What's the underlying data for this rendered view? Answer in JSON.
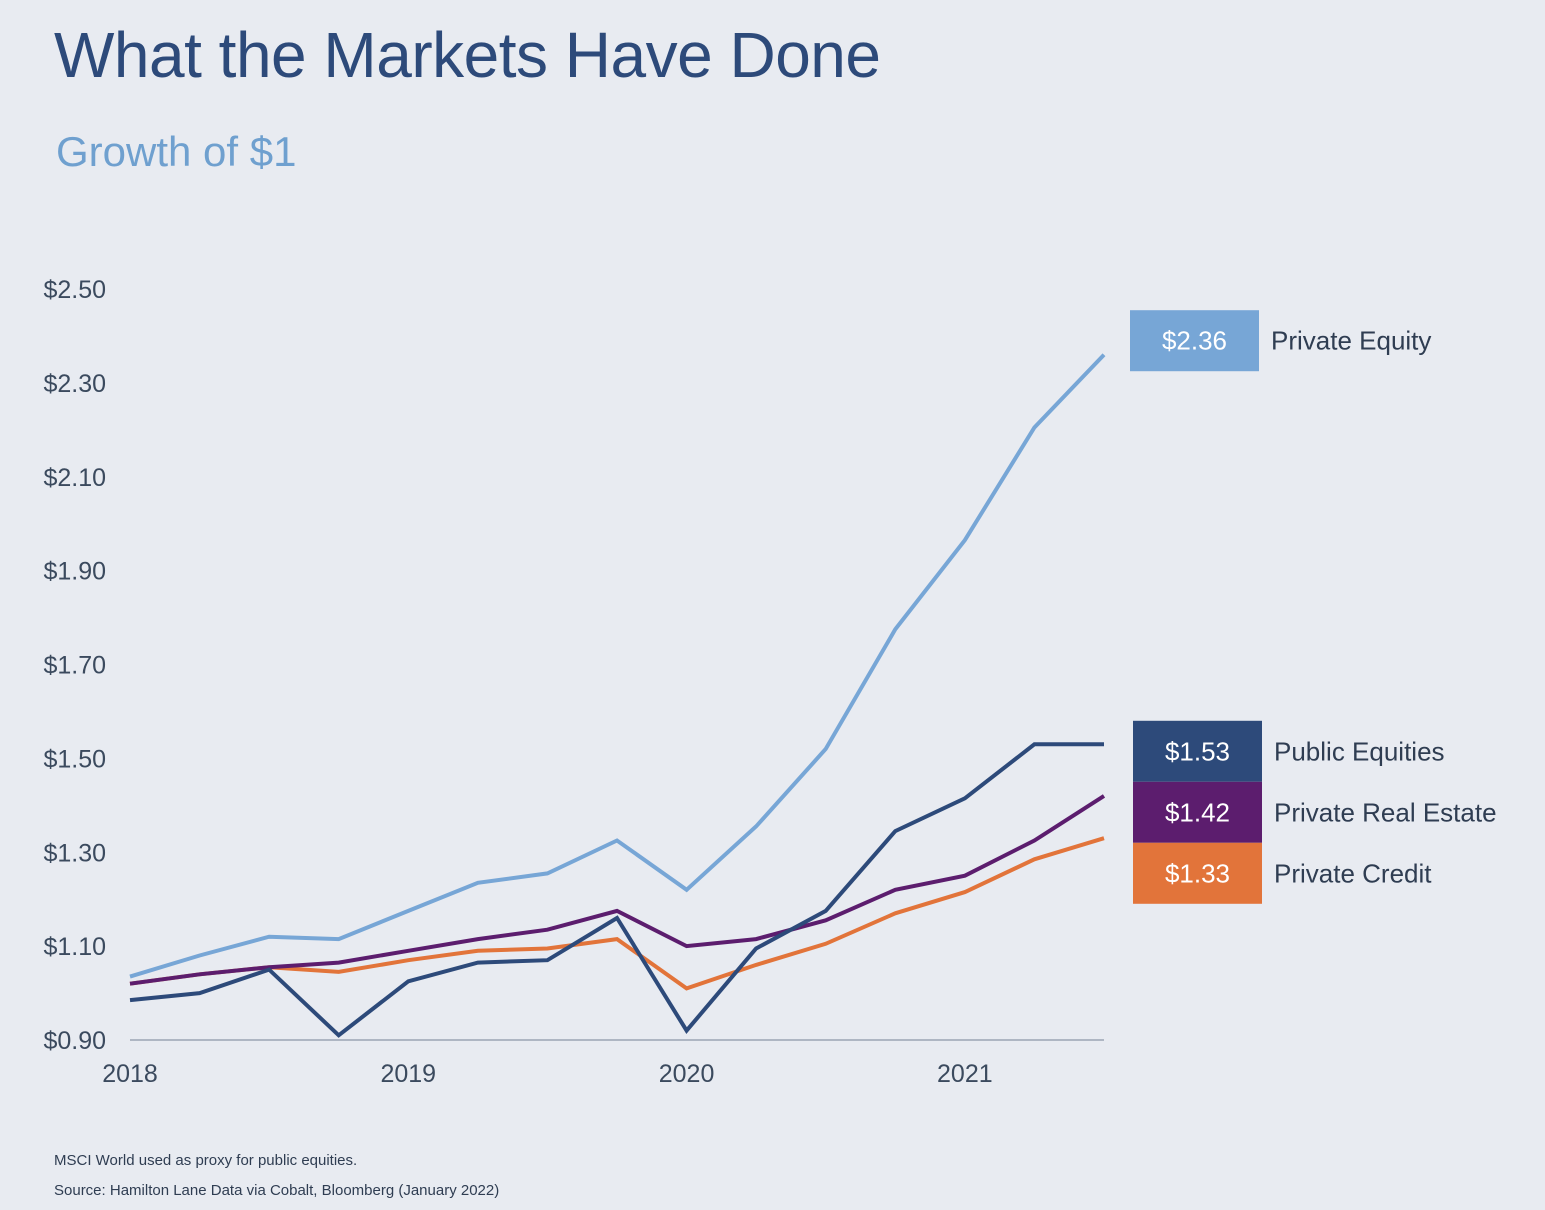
{
  "chart_data": {
    "type": "line",
    "title": "What the Markets Have Done",
    "subtitle": "Growth of $1",
    "x": [
      2018.0,
      2018.25,
      2018.5,
      2018.75,
      2019.0,
      2019.25,
      2019.5,
      2019.75,
      2020.0,
      2020.25,
      2020.5,
      2020.75,
      2021.0,
      2021.25,
      2021.5
    ],
    "x_ticks": [
      2018,
      2019,
      2020,
      2021
    ],
    "x_tick_labels": [
      "2018",
      "2019",
      "2020",
      "2021"
    ],
    "xlim": [
      2018.0,
      2021.5
    ],
    "y_ticks": [
      0.9,
      1.1,
      1.3,
      1.5,
      1.7,
      1.9,
      2.1,
      2.3,
      2.5
    ],
    "y_tick_labels": [
      "$0.90",
      "$1.10",
      "$1.30",
      "$1.50",
      "$1.70",
      "$1.90",
      "$2.10",
      "$2.30",
      "$2.50"
    ],
    "ylim": [
      0.9,
      2.5
    ],
    "grid": false,
    "series": [
      {
        "name": "Private Equity",
        "end_label": "$2.36",
        "color": "#77a6d6",
        "values": [
          1.035,
          1.08,
          1.12,
          1.115,
          1.175,
          1.235,
          1.255,
          1.325,
          1.22,
          1.355,
          1.52,
          1.775,
          1.965,
          2.205,
          2.36
        ]
      },
      {
        "name": "Public Equities",
        "end_label": "$1.53",
        "color": "#2d4a7a",
        "values": [
          0.985,
          1.0,
          1.05,
          0.91,
          1.025,
          1.065,
          1.07,
          1.16,
          0.92,
          1.095,
          1.175,
          1.345,
          1.415,
          1.53,
          1.53
        ]
      },
      {
        "name": "Private Real Estate",
        "end_label": "$1.42",
        "color": "#5c1d6e",
        "values": [
          1.02,
          1.04,
          1.055,
          1.065,
          1.09,
          1.115,
          1.135,
          1.175,
          1.1,
          1.115,
          1.155,
          1.22,
          1.25,
          1.325,
          1.42
        ]
      },
      {
        "name": "Private Credit",
        "end_label": "$1.33",
        "color": "#e2743a",
        "values": [
          1.02,
          1.04,
          1.055,
          1.045,
          1.07,
          1.09,
          1.095,
          1.115,
          1.01,
          1.06,
          1.105,
          1.17,
          1.215,
          1.285,
          1.33
        ]
      }
    ]
  },
  "footnotes": {
    "note1": "MSCI World used as proxy for public equities.",
    "note2": "Source: Hamilton Lane Data via Cobalt, Bloomberg (January 2022)"
  }
}
